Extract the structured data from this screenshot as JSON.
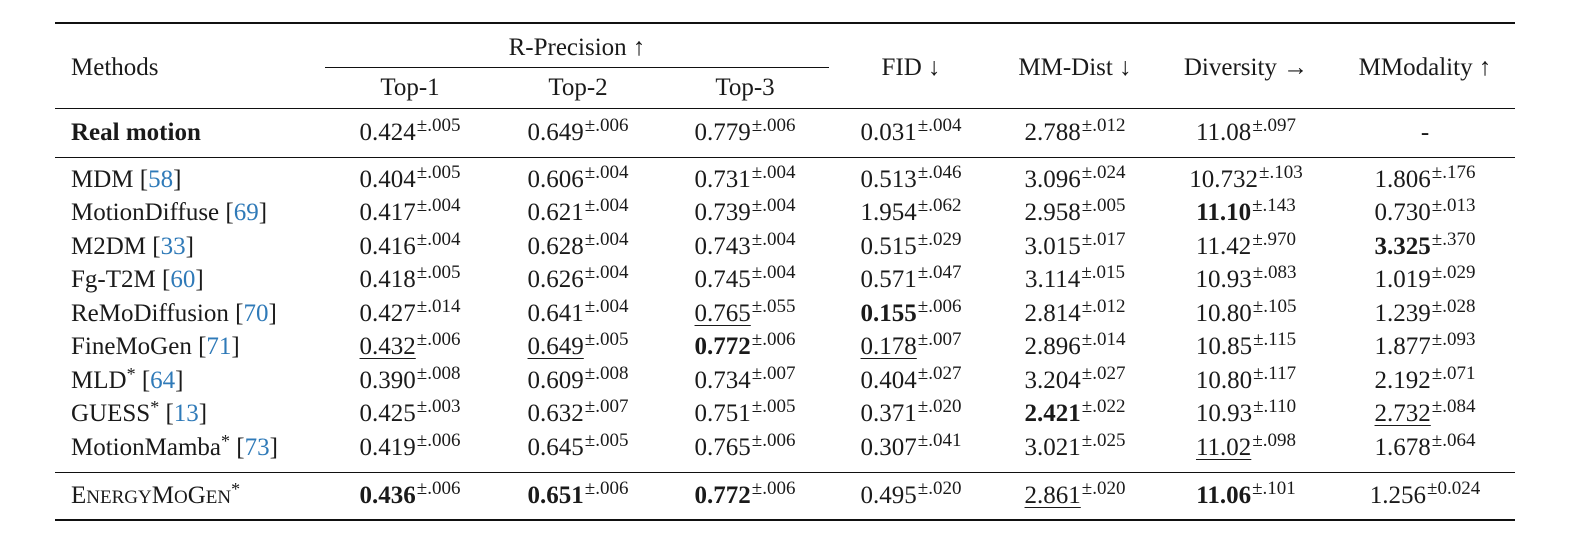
{
  "header": {
    "methods": "Methods",
    "r_precision": "R-Precision ↑",
    "top1": "Top-1",
    "top2": "Top-2",
    "top3": "Top-3",
    "fid": "FID ↓",
    "mm_dist": "MM-Dist ↓",
    "diversity": "Diversity →",
    "mmodality": "MModality ↑"
  },
  "real": {
    "name": "Real motion",
    "top1": "0.424",
    "top1_pm": "±.005",
    "top2": "0.649",
    "top2_pm": "±.006",
    "top3": "0.779",
    "top3_pm": "±.006",
    "fid": "0.031",
    "fid_pm": "±.004",
    "mmdist": "2.788",
    "mmdist_pm": "±.012",
    "div": "11.08",
    "div_pm": "±.097",
    "mmod": "-"
  },
  "rows": [
    {
      "name": "MDM [",
      "cite": "58",
      "close": "]",
      "top1": "0.404",
      "top1_pm": "±.005",
      "top2": "0.606",
      "top2_pm": "±.004",
      "top3": "0.731",
      "top3_pm": "±.004",
      "fid": "0.513",
      "fid_pm": "±.046",
      "mmdist": "3.096",
      "mmdist_pm": "±.024",
      "div": "10.732",
      "div_pm": "±.103",
      "mmod": "1.806",
      "mmod_pm": "±.176"
    },
    {
      "name": "MotionDiffuse [",
      "cite": "69",
      "close": "]",
      "top1": "0.417",
      "top1_pm": "±.004",
      "top2": "0.621",
      "top2_pm": "±.004",
      "top3": "0.739",
      "top3_pm": "±.004",
      "fid": "1.954",
      "fid_pm": "±.062",
      "mmdist": "2.958",
      "mmdist_pm": "±.005",
      "div": "11.10",
      "div_pm": "±.143",
      "mmod": "0.730",
      "mmod_pm": "±.013"
    },
    {
      "name": "M2DM [",
      "cite": "33",
      "close": "]",
      "top1": "0.416",
      "top1_pm": "±.004",
      "top2": "0.628",
      "top2_pm": "±.004",
      "top3": "0.743",
      "top3_pm": "±.004",
      "fid": "0.515",
      "fid_pm": "±.029",
      "mmdist": "3.015",
      "mmdist_pm": "±.017",
      "div": "11.42",
      "div_pm": "±.970",
      "mmod": "3.325",
      "mmod_pm": "±.370"
    },
    {
      "name": "Fg-T2M [",
      "cite": "60",
      "close": "]",
      "top1": "0.418",
      "top1_pm": "±.005",
      "top2": "0.626",
      "top2_pm": "±.004",
      "top3": "0.745",
      "top3_pm": "±.004",
      "fid": "0.571",
      "fid_pm": "±.047",
      "mmdist": "3.114",
      "mmdist_pm": "±.015",
      "div": "10.93",
      "div_pm": "±.083",
      "mmod": "1.019",
      "mmod_pm": "±.029"
    },
    {
      "name": "ReMoDiffusion [",
      "cite": "70",
      "close": "]",
      "top1": "0.427",
      "top1_pm": "±.014",
      "top2": "0.641",
      "top2_pm": "±.004",
      "top3": "0.765",
      "top3_pm": "±.055",
      "fid": "0.155",
      "fid_pm": "±.006",
      "mmdist": "2.814",
      "mmdist_pm": "±.012",
      "div": "10.80",
      "div_pm": "±.105",
      "mmod": "1.239",
      "mmod_pm": "±.028"
    },
    {
      "name": "FineMoGen [",
      "cite": "71",
      "close": "]",
      "top1": "0.432",
      "top1_pm": "±.006",
      "top2": "0.649",
      "top2_pm": "±.005",
      "top3": "0.772",
      "top3_pm": "±.006",
      "fid": "0.178",
      "fid_pm": "±.007",
      "mmdist": "2.896",
      "mmdist_pm": "±.014",
      "div": "10.85",
      "div_pm": "±.115",
      "mmod": "1.877",
      "mmod_pm": "±.093"
    },
    {
      "name": "MLD",
      "star": "*",
      "name_rest": " [",
      "cite": "64",
      "close": "]",
      "top1": "0.390",
      "top1_pm": "±.008",
      "top2": "0.609",
      "top2_pm": "±.008",
      "top3": "0.734",
      "top3_pm": "±.007",
      "fid": "0.404",
      "fid_pm": "±.027",
      "mmdist": "3.204",
      "mmdist_pm": "±.027",
      "div": "10.80",
      "div_pm": "±.117",
      "mmod": "2.192",
      "mmod_pm": "±.071"
    },
    {
      "name": "GUESS",
      "star": "*",
      "name_rest": " [",
      "cite": "13",
      "close": "]",
      "top1": "0.425",
      "top1_pm": "±.003",
      "top2": "0.632",
      "top2_pm": "±.007",
      "top3": "0.751",
      "top3_pm": "±.005",
      "fid": "0.371",
      "fid_pm": "±.020",
      "mmdist": "2.421",
      "mmdist_pm": "±.022",
      "div": "10.93",
      "div_pm": "±.110",
      "mmod": "2.732",
      "mmod_pm": "±.084"
    },
    {
      "name": "MotionMamba",
      "star": "*",
      "name_rest": " [",
      "cite": "73",
      "close": "]",
      "top1": "0.419",
      "top1_pm": "±.006",
      "top2": "0.645",
      "top2_pm": "±.005",
      "top3": "0.765",
      "top3_pm": "±.006",
      "fid": "0.307",
      "fid_pm": "±.041",
      "mmdist": "3.021",
      "mmdist_pm": "±.025",
      "div": "11.02",
      "div_pm": "±.098",
      "mmod": "1.678",
      "mmod_pm": "±.064"
    }
  ],
  "ours": {
    "name_e": "E",
    "name_nergy": "NERGY",
    "name_m": "M",
    "name_o": "O",
    "name_g": "G",
    "name_en": "EN",
    "star": "*",
    "top1": "0.436",
    "top1_pm": "±.006",
    "top2": "0.651",
    "top2_pm": "±.006",
    "top3": "0.772",
    "top3_pm": "±.006",
    "fid": "0.495",
    "fid_pm": "±.020",
    "mmdist": "2.861",
    "mmdist_pm": "±.020",
    "div": "11.06",
    "div_pm": "±.101",
    "mmod": "1.256",
    "mmod_pm": "±0.024"
  }
}
